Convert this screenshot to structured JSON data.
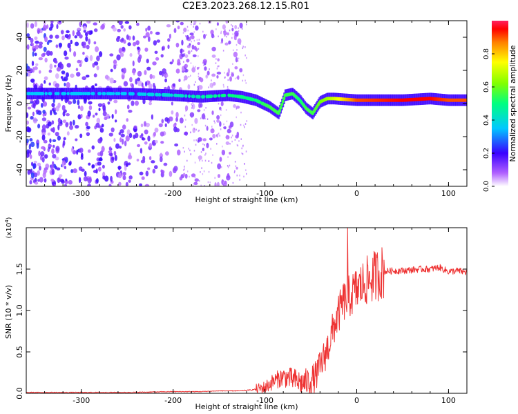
{
  "figure_title": "C2E3.2023.268.12.15.R01",
  "colorbar": {
    "label": "Normalized spectral amplitude",
    "ticks": [
      "0.0",
      "0.2",
      "0.4",
      "0.6",
      "0.8"
    ],
    "tick_values": [
      0.0,
      0.2,
      0.4,
      0.6,
      0.8
    ],
    "range": [
      0,
      1
    ]
  },
  "chart_data": [
    {
      "type": "heatmap",
      "title": "",
      "xlabel": "Height of straight line (km)",
      "ylabel": "Frequency (Hz)",
      "xlim": [
        -360,
        120
      ],
      "ylim": [
        -50,
        50
      ],
      "xticks": [
        -300,
        -200,
        -100,
        0,
        100
      ],
      "xtick_labels": [
        "-300",
        "-200",
        "-100",
        "0",
        "100"
      ],
      "yticks": [
        -40,
        -20,
        0,
        20,
        40
      ],
      "ytick_labels": [
        "-40",
        "-20",
        "0",
        "20",
        "40"
      ],
      "colormap": "rainbow (violet to red)",
      "noise_region_x": [
        -360,
        -125
      ],
      "ridge": {
        "x": [
          -360,
          -300,
          -250,
          -200,
          -170,
          -140,
          -125,
          -110,
          -95,
          -85,
          -78,
          -70,
          -62,
          -55,
          -48,
          -40,
          -32,
          -25,
          0,
          50,
          80,
          100,
          120
        ],
        "y": [
          6,
          6,
          6,
          5,
          4,
          5,
          4,
          2,
          -2,
          -6,
          5,
          6,
          2,
          -3,
          -6,
          1,
          3,
          3,
          2,
          2,
          3,
          2,
          2
        ],
        "amplitude": [
          0.35,
          0.35,
          0.35,
          0.4,
          0.45,
          0.5,
          0.5,
          0.5,
          0.55,
          0.55,
          0.55,
          0.55,
          0.5,
          0.55,
          0.55,
          0.6,
          0.65,
          0.7,
          0.9,
          0.95,
          0.95,
          0.9,
          0.9
        ]
      }
    },
    {
      "type": "line",
      "title": "",
      "xlabel": "Height of straight line (km)",
      "ylabel": "SNR (10 * v/v)",
      "y_multiplier": "(x10",
      "y_multiplier_exp": "4",
      "y_multiplier_close": ")",
      "xlim": [
        -360,
        120
      ],
      "ylim": [
        0,
        2.0
      ],
      "xticks": [
        -300,
        -200,
        -100,
        0,
        100
      ],
      "xtick_labels": [
        "-300",
        "-200",
        "-100",
        "0",
        "100"
      ],
      "yticks": [
        0.0,
        0.5,
        1.0,
        1.5
      ],
      "ytick_labels": [
        "0.0",
        "0.5",
        "1.0",
        "1.5"
      ],
      "series": [
        {
          "color": "#ee3333",
          "x": [
            -360,
            -300,
            -250,
            -200,
            -170,
            -150,
            -130,
            -115,
            -100,
            -90,
            -80,
            -70,
            -60,
            -50,
            -45,
            -40,
            -35,
            -30,
            -25,
            -20,
            -15,
            -10,
            -5,
            0,
            5,
            10,
            15,
            20,
            25,
            30,
            40,
            50,
            60,
            70,
            80,
            90,
            100,
            110,
            120
          ],
          "y": [
            0.01,
            0.01,
            0.01,
            0.02,
            0.02,
            0.03,
            0.03,
            0.04,
            0.07,
            0.15,
            0.2,
            0.17,
            0.12,
            0.15,
            0.2,
            0.32,
            0.45,
            0.6,
            0.8,
            0.95,
            1.1,
            1.15,
            1.2,
            1.25,
            1.3,
            1.35,
            1.38,
            1.42,
            1.45,
            1.47,
            1.48,
            1.48,
            1.49,
            1.5,
            1.5,
            1.52,
            1.47,
            1.48,
            1.46
          ]
        }
      ],
      "spike": {
        "x": -10,
        "y": 2.0
      }
    }
  ]
}
